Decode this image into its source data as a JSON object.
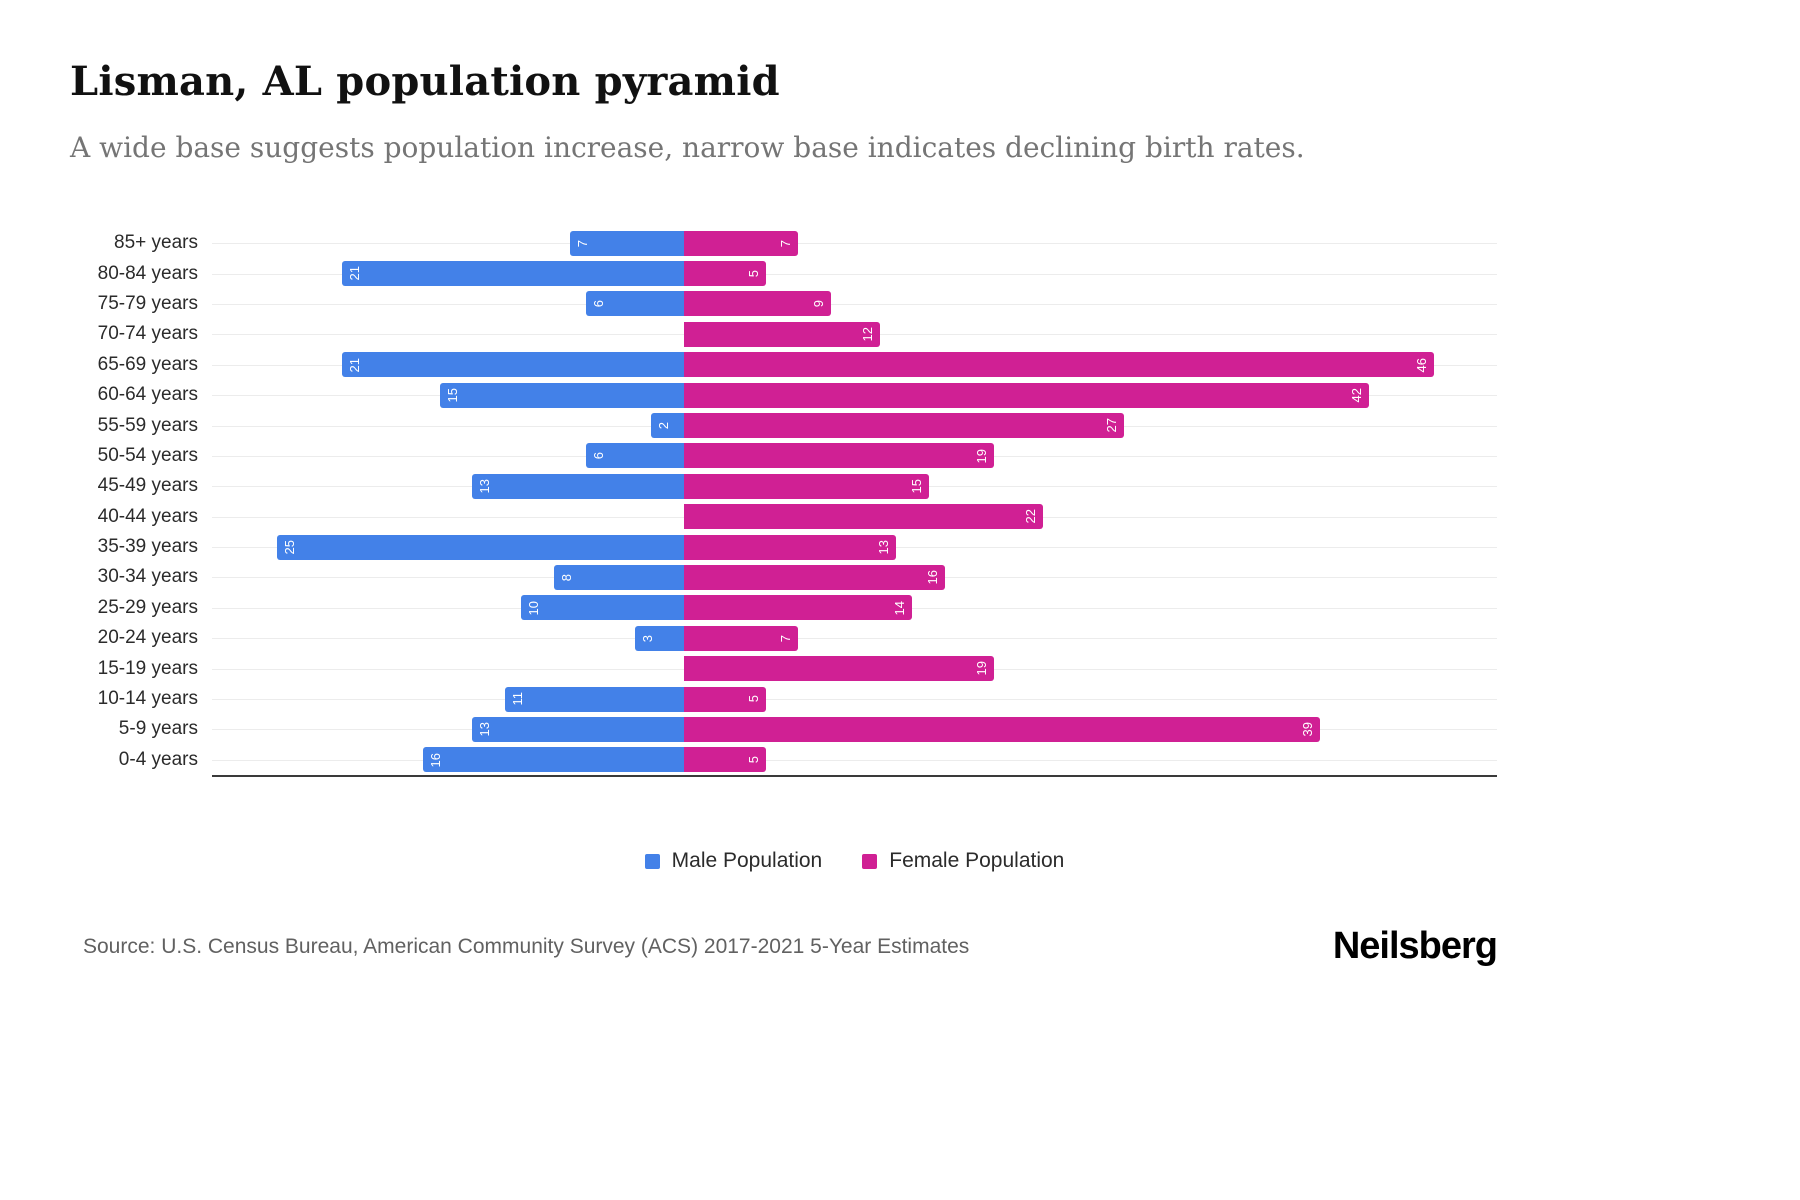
{
  "header": {
    "title": "Lisman, AL population pyramid",
    "subtitle": "A wide base suggests population increase, narrow base indicates declining birth rates."
  },
  "legend": {
    "items": [
      {
        "label": "Male Population",
        "color": "#4381e8"
      },
      {
        "label": "Female Population",
        "color": "#d02094"
      }
    ]
  },
  "footer": {
    "source": "Source: U.S. Census Bureau, American Community Survey (ACS) 2017-2021 5-Year Estimates",
    "logo": "Neilsberg"
  },
  "chart_data": {
    "type": "bar",
    "variant": "population-pyramid",
    "title": "Lisman, AL population pyramid",
    "categories": [
      "85+ years",
      "80-84 years",
      "75-79 years",
      "70-74 years",
      "65-69 years",
      "60-64 years",
      "55-59 years",
      "50-54 years",
      "45-49 years",
      "40-44 years",
      "35-39 years",
      "30-34 years",
      "25-29 years",
      "20-24 years",
      "15-19 years",
      "10-14 years",
      "5-9 years",
      "0-4 years"
    ],
    "series": [
      {
        "name": "Male Population",
        "color": "#4381e8",
        "side": "left",
        "values": [
          7,
          21,
          6,
          0,
          21,
          15,
          2,
          6,
          13,
          0,
          25,
          8,
          10,
          3,
          0,
          11,
          13,
          16
        ]
      },
      {
        "name": "Female Population",
        "color": "#d02094",
        "side": "right",
        "values": [
          7,
          5,
          9,
          12,
          46,
          42,
          27,
          19,
          15,
          22,
          13,
          16,
          14,
          7,
          19,
          5,
          39,
          5
        ]
      }
    ],
    "value_labels": "inside-end-rotated-white",
    "axis": {
      "male_max": 29,
      "female_max": 50
    },
    "grid": "horizontal-light",
    "legend_position": "bottom-center"
  }
}
